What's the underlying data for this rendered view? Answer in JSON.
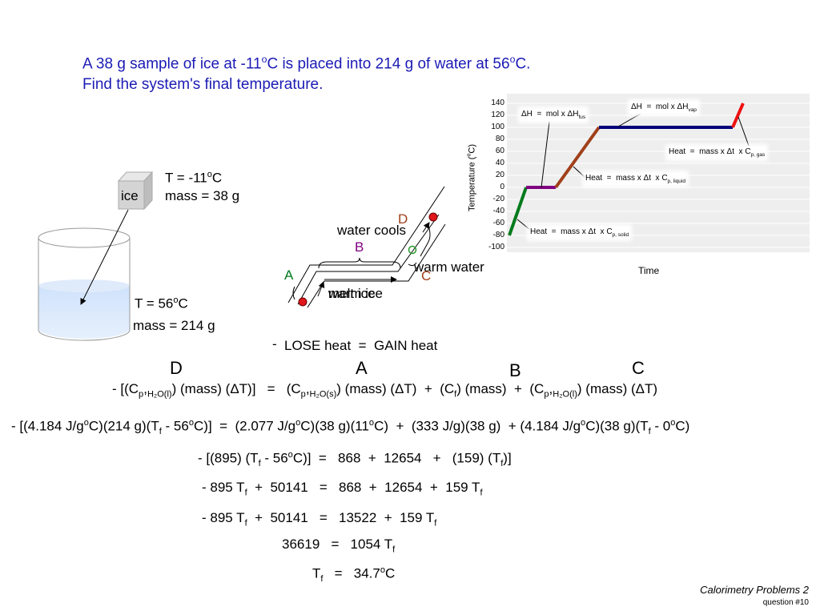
{
  "problem": [
    [
      "A 38 g sample of ice at -11",
      {
        "sup": "o"
      },
      "C is placed into 214 g of water at 56",
      {
        "sup": "o"
      },
      "C."
    ],
    [
      "Find the system's final temperature."
    ]
  ],
  "ice": {
    "label": "ice",
    "temp": [
      "T = -11",
      {
        "sup": "o"
      },
      "C"
    ],
    "mass": "mass = 38 g"
  },
  "water": {
    "temp": [
      "T = 56",
      {
        "sup": "o"
      },
      "C"
    ],
    "mass": "mass = 214 g"
  },
  "diagram": {
    "D": "D",
    "A": "A",
    "B": "B",
    "C": "C",
    "water_cools": "water cools",
    "warm_water": "warm water",
    "melt_ice": "melt ice",
    "warm_ice": "warm ice",
    "minus": "-",
    "balance": "LOSE heat  =  GAIN heat"
  },
  "heating_curve": {
    "ylabel": [
      "Temperature (",
      {
        "sup": "o"
      },
      "C)"
    ],
    "xlabel": "Time",
    "yticks": [
      140,
      120,
      100,
      80,
      60,
      40,
      20,
      0,
      -20,
      -40,
      -60,
      -80,
      -100
    ],
    "ylim": [
      -100,
      140
    ],
    "temps": [
      -80,
      0,
      0,
      100,
      100,
      140
    ],
    "colors": [
      "#007a1c",
      "#800080",
      "#a0401a",
      "#00007a",
      "#ee1111"
    ],
    "annotations": [
      [
        "ΔH  =  mol x ΔH",
        {
          "sub": "fus"
        }
      ],
      [
        "ΔH  =  mol x ΔH",
        {
          "sub": "vap"
        }
      ],
      [
        "Heat  =  mass x Δt  x C",
        {
          "sub": "p, gas"
        }
      ],
      [
        "Heat  =  mass x Δt  x C",
        {
          "sub": "p, liquid"
        }
      ],
      [
        "Heat  =  mass x Δt  x C",
        {
          "sub": "p, solid"
        }
      ]
    ]
  },
  "columns": [
    "D",
    "A",
    "B",
    "C"
  ],
  "equations": [
    [
      "- [(C",
      {
        "sub": "p"
      },
      ",",
      {
        "sub": "H₂O(l)"
      },
      ") (mass) (ΔT)]   =   (C",
      {
        "sub": "p"
      },
      ",",
      {
        "sub": "H₂O(s)"
      },
      ") (mass) (ΔT)  +  (C",
      {
        "sub": "f"
      },
      ") (mass)  +  (C",
      {
        "sub": "p"
      },
      ",",
      {
        "sub": "H₂O(l)"
      },
      ") (mass) (ΔT)"
    ],
    [
      "- [(4.184 J/g",
      {
        "sup": "o"
      },
      "C)(214 g)(T",
      {
        "sub": "f"
      },
      " - 56",
      {
        "sup": "o"
      },
      "C)]  =  (2.077 J/g",
      {
        "sup": "o"
      },
      "C)(38 g)(11",
      {
        "sup": "o"
      },
      "C)  +  (333 J/g)(38 g)  + (4.184 J/g",
      {
        "sup": "o"
      },
      "C)(38 g)(T",
      {
        "sub": "f"
      },
      " - 0",
      {
        "sup": "o"
      },
      "C)"
    ],
    [
      "- [(895) (T",
      {
        "sub": "f"
      },
      " - 56",
      {
        "sup": "o"
      },
      "C)]  =   868  +  12654   +   (159) (T",
      {
        "sub": "f"
      },
      ")]"
    ],
    [
      "- 895 T",
      {
        "sub": "f"
      },
      "  +  50141   =   868  +  12654  +  159 T",
      {
        "sub": "f"
      }
    ],
    [
      "- 895 T",
      {
        "sub": "f"
      },
      "  +  50141   =   13522  +  159 T",
      {
        "sub": "f"
      }
    ],
    [
      "36619   =   1054 T",
      {
        "sub": "f"
      }
    ],
    [
      "T",
      {
        "sub": "f"
      },
      "   =   34.7",
      {
        "sup": "o"
      },
      "C"
    ]
  ],
  "footer": {
    "title": "Calorimetry Problems 2",
    "subtitle": "question #10"
  }
}
